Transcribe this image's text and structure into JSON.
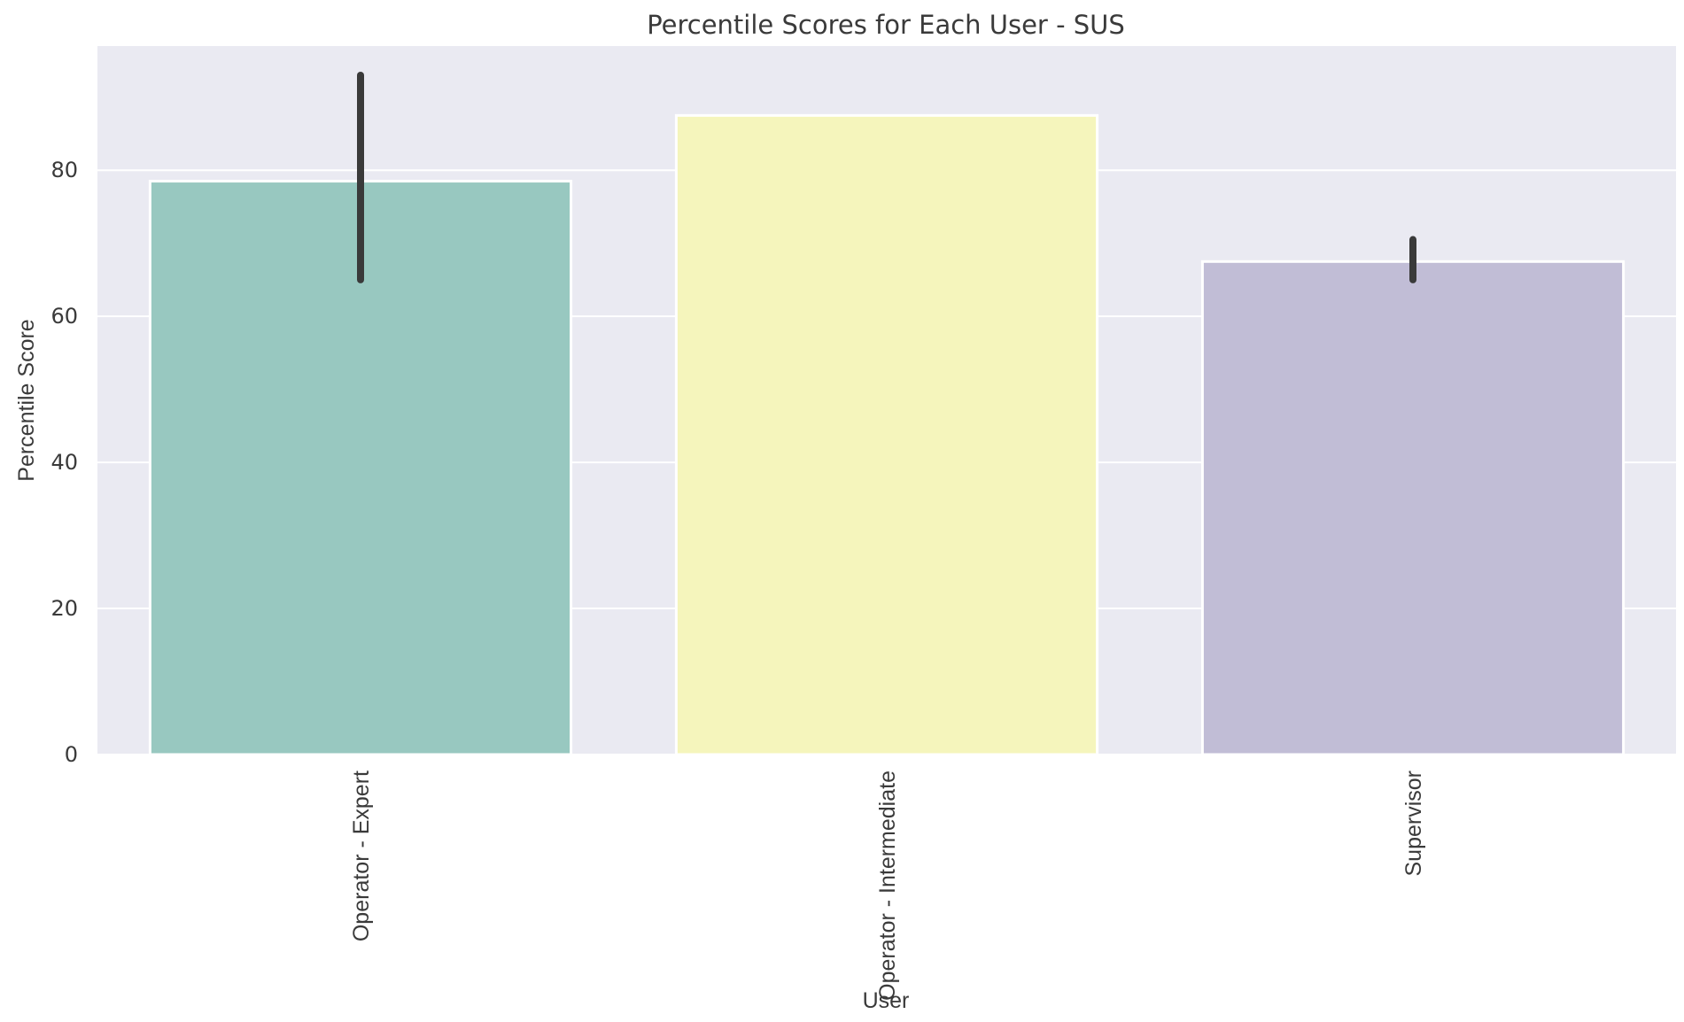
{
  "chart_data": {
    "type": "bar",
    "title": "Percentile Scores for Each User - SUS",
    "xlabel": "User",
    "ylabel": "Percentile Score",
    "categories": [
      "Operator - Expert",
      "Operator - Intermediate",
      "Supervisor"
    ],
    "values": [
      78.5,
      87.5,
      67.5
    ],
    "error_bars": [
      {
        "low": 65,
        "high": 93
      },
      null,
      {
        "low": 65,
        "high": 70.5
      }
    ],
    "colors": [
      "#98c8c0",
      "#f5f5bc",
      "#c1bdd6"
    ],
    "error_bar_color": "#3a3a3a",
    "ylim": [
      0,
      97
    ],
    "yticks": [
      0,
      20,
      40,
      60,
      80
    ],
    "grid": true,
    "background_color": "#eaeaf2"
  }
}
